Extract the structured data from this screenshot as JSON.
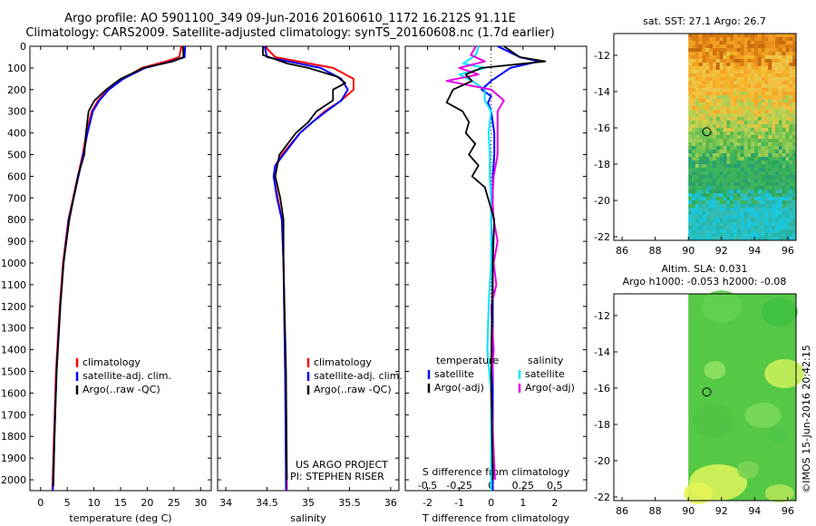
{
  "header": {
    "line1": "Argo profile: AO 5901100_349 09-Jun-2016 20160610_1172 16.212S 91.11E",
    "line2": "Climatology: CARS2009. Satellite-adjusted climatology: synTS_20160608.nc (1.7d earlier)"
  },
  "colors": {
    "climatology": "#ff0000",
    "satellite": "#0000ff",
    "argo": "#000000",
    "sat_s": "#00e5ff",
    "argo_s": "#e600e6"
  },
  "depth_ticks": [
    0,
    100,
    200,
    300,
    400,
    500,
    600,
    700,
    800,
    900,
    1000,
    1100,
    1200,
    1300,
    1400,
    1500,
    1600,
    1700,
    1800,
    1900,
    2000
  ],
  "temp_panel": {
    "xlabel": "temperature (deg C)",
    "xticks": [
      0,
      5,
      10,
      15,
      20,
      25,
      30
    ],
    "xlim": [
      -2,
      32
    ],
    "legend": [
      "climatology",
      "satellite-adj. clim.",
      "Argo(..raw -QC)"
    ]
  },
  "sal_panel": {
    "xlabel": "salinity",
    "xticks": [
      "34",
      "34.5",
      "35",
      "35.5",
      "36"
    ],
    "legend": [
      "climatology",
      "satellite-adj. clim.",
      "Argo(..raw -QC)"
    ],
    "credit1": "US ARGO PROJECT",
    "credit2": "PI: STEPHEN RISER"
  },
  "diff_panel": {
    "xlabel": "T difference from climatology",
    "s_label": "S difference from climatology",
    "t_ticks": [
      "-2",
      "-1",
      "0",
      "1",
      "2"
    ],
    "s_ticks": [
      "-0.5",
      "-0.25",
      "0",
      "0.25",
      "0.5"
    ],
    "legend_head_t": "temperature",
    "legend_head_s": "salinity",
    "legend_t": [
      "satellite",
      "Argo(-adj)"
    ],
    "legend_s": [
      "satellite",
      "Argo(-adj)"
    ]
  },
  "sst_map": {
    "title": "sat. SST: 27.1  Argo: 26.7",
    "yticks": [
      "-12",
      "-14",
      "-16",
      "-18",
      "-20",
      "-22"
    ],
    "xticks": [
      "86",
      "88",
      "90",
      "92",
      "94",
      "96"
    ]
  },
  "sla_map": {
    "title1": "Altim. SLA: 0.031",
    "title2": "Argo h1000: -0.053 h2000: -0.08",
    "yticks": [
      "-12",
      "-14",
      "-16",
      "-18",
      "-20",
      "-22"
    ],
    "xticks": [
      "86",
      "88",
      "90",
      "92",
      "94",
      "96"
    ]
  },
  "side_stamp": "©IMOS 15-Jun-2016 20:42:15",
  "chart_data": [
    {
      "type": "line",
      "title": "",
      "xlabel": "temperature (deg C)",
      "ylabel": "",
      "xlim": [
        -2,
        32
      ],
      "ylim": [
        2050,
        0
      ],
      "series": [
        {
          "name": "climatology",
          "depth": [
            0,
            50,
            70,
            100,
            150,
            200,
            250,
            300,
            400,
            500,
            600,
            800,
            1000,
            1200,
            1500,
            1800,
            2050
          ],
          "values": [
            26.4,
            26.0,
            23.5,
            19.0,
            15.5,
            12.6,
            10.8,
            9.6,
            8.6,
            7.9,
            7.0,
            5.2,
            4.2,
            3.6,
            2.9,
            2.5,
            2.2
          ]
        },
        {
          "name": "satellite-adj. clim.",
          "depth": [
            0,
            50,
            70,
            100,
            150,
            200,
            250,
            300,
            400,
            500,
            600,
            800,
            1000,
            1200,
            1500,
            1800,
            2050
          ],
          "values": [
            27.1,
            27.0,
            24.5,
            19.6,
            15.5,
            12.8,
            11.0,
            9.8,
            8.8,
            8.0,
            7.1,
            5.3,
            4.3,
            3.7,
            3.0,
            2.6,
            2.3
          ]
        },
        {
          "name": "Argo(..raw -QC)",
          "depth": [
            0,
            50,
            70,
            100,
            150,
            200,
            250,
            300,
            400,
            500,
            600,
            800,
            1000,
            1200,
            1500,
            1800,
            2030
          ],
          "values": [
            26.7,
            26.8,
            24.8,
            19.3,
            15.0,
            12.3,
            10.1,
            9.0,
            8.5,
            8.2,
            7.0,
            5.4,
            4.3,
            3.7,
            3.0,
            2.6,
            2.4
          ]
        }
      ]
    },
    {
      "type": "line",
      "title": "",
      "xlabel": "salinity",
      "ylabel": "",
      "xlim": [
        33.9,
        36.1
      ],
      "ylim": [
        2050,
        0
      ],
      "series": [
        {
          "name": "climatology",
          "depth": [
            0,
            50,
            100,
            150,
            200,
            250,
            300,
            350,
            400,
            500,
            550,
            600,
            700,
            800,
            1000,
            1500,
            2050
          ],
          "values": [
            34.47,
            34.6,
            35.3,
            35.55,
            35.55,
            35.4,
            35.2,
            35.05,
            34.9,
            34.68,
            34.6,
            34.58,
            34.63,
            34.68,
            34.7,
            34.72,
            34.74
          ]
        },
        {
          "name": "satellite-adj. clim.",
          "depth": [
            0,
            50,
            100,
            150,
            200,
            250,
            300,
            350,
            400,
            500,
            550,
            600,
            700,
            800,
            1000,
            1500,
            2050
          ],
          "values": [
            34.47,
            34.5,
            35.15,
            35.4,
            35.48,
            35.4,
            35.22,
            35.05,
            34.9,
            34.7,
            34.6,
            34.58,
            34.62,
            34.68,
            34.7,
            34.72,
            34.73
          ]
        },
        {
          "name": "Argo(..raw -QC)",
          "depth": [
            0,
            40,
            80,
            100,
            140,
            170,
            200,
            250,
            300,
            350,
            400,
            500,
            600,
            700,
            800,
            1000,
            1500,
            2000
          ],
          "values": [
            34.45,
            34.45,
            34.75,
            35.0,
            35.35,
            35.45,
            35.3,
            35.3,
            35.1,
            35.0,
            34.85,
            34.65,
            34.6,
            34.66,
            34.7,
            34.7,
            34.73,
            34.74
          ]
        }
      ]
    },
    {
      "type": "line",
      "title": "",
      "xlabel": "T difference from climatology",
      "ylabel": "",
      "xlim": [
        -2.7,
        3
      ],
      "ylim": [
        2050,
        0
      ],
      "series": [
        {
          "name": "temperature satellite",
          "depth": [
            0,
            50,
            70,
            100,
            130,
            160,
            200,
            230,
            260,
            300,
            400,
            500,
            600,
            700,
            800,
            1000,
            1500,
            2050
          ],
          "values": [
            0.2,
            0.9,
            1.5,
            0.6,
            0.3,
            0.0,
            -0.3,
            0.0,
            -0.1,
            0.0,
            0.1,
            0.1,
            0.05,
            0.05,
            0.0,
            0.05,
            0.05,
            0.05
          ]
        },
        {
          "name": "temperature Argo(-adj)",
          "depth": [
            0,
            50,
            70,
            100,
            130,
            160,
            200,
            260,
            300,
            350,
            400,
            450,
            500,
            550,
            600,
            650,
            700,
            800,
            1000,
            1500,
            2000
          ],
          "values": [
            0.4,
            0.9,
            1.7,
            -0.3,
            -0.8,
            -0.6,
            -1.2,
            -1.4,
            -0.9,
            -0.7,
            -0.8,
            -0.5,
            -0.7,
            -0.4,
            -0.6,
            -0.2,
            -0.1,
            0.1,
            0.05,
            0.0,
            0.05
          ]
        }
      ]
    },
    {
      "type": "line",
      "title": "",
      "xlabel": "S difference from climatology",
      "ylabel": "",
      "xlim": [
        -0.675,
        0.75
      ],
      "ylim": [
        2050,
        0
      ],
      "series": [
        {
          "name": "salinity satellite",
          "depth": [
            0,
            40,
            80,
            100,
            130,
            160,
            200,
            250,
            300,
            400,
            500,
            600,
            700,
            800,
            1000,
            1200,
            1400,
            1600,
            2050
          ],
          "values": [
            -0.1,
            -0.12,
            -0.22,
            -0.05,
            -0.25,
            -0.15,
            -0.05,
            -0.05,
            0.0,
            -0.02,
            -0.01,
            -0.01,
            0.0,
            0.0,
            0.0,
            -0.02,
            -0.03,
            0.0,
            0.0
          ]
        },
        {
          "name": "salinity Argo(-adj)",
          "depth": [
            0,
            40,
            70,
            100,
            130,
            160,
            200,
            250,
            300,
            400,
            500,
            600,
            700,
            800,
            900,
            1000,
            1100,
            1200,
            1400,
            1600,
            2000
          ],
          "values": [
            -0.12,
            -0.16,
            -0.05,
            -0.25,
            -0.1,
            -0.35,
            0.0,
            0.1,
            0.05,
            0.05,
            0.05,
            0.02,
            0.01,
            0.02,
            0.05,
            0.02,
            0.04,
            0.0,
            0.02,
            0.0,
            0.03
          ]
        }
      ]
    },
    {
      "type": "heatmap",
      "title": "sat. SST: 27.1  Argo: 26.7",
      "xlim": [
        85.5,
        96.5
      ],
      "ylim": [
        -22.2,
        -10.8
      ],
      "argo_position": [
        91.11,
        -16.212
      ]
    },
    {
      "type": "heatmap",
      "title": "Altim. SLA: 0.031",
      "xlim": [
        85.5,
        96.5
      ],
      "ylim": [
        -22.2,
        -10.8
      ],
      "argo_position": [
        91.11,
        -16.212
      ]
    }
  ]
}
